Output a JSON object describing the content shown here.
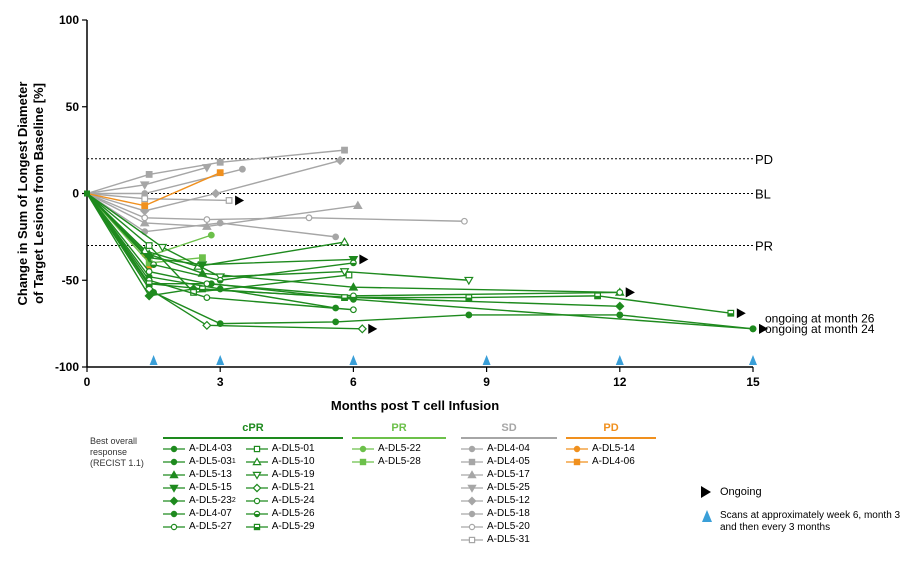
{
  "chart_data": {
    "type": "line",
    "ylabel_line1": "Change in Sum of Longest Diameter",
    "ylabel_line2": "of Target Lesions from Baseline [%]",
    "xlabel": "Months post T cell Infusion",
    "xlim": [
      0,
      15
    ],
    "ylim": [
      -100,
      100
    ],
    "xticks": [
      0,
      3,
      6,
      9,
      12,
      15
    ],
    "yticks": [
      100,
      50,
      0,
      -50,
      -100
    ],
    "reference_lines": [
      {
        "label": "PD",
        "y": 20
      },
      {
        "label": "BL",
        "y": 0
      },
      {
        "label": "PR",
        "y": -30
      }
    ],
    "scan_markers_x": [
      1.5,
      3,
      6,
      9,
      12,
      15
    ],
    "annotations": [
      {
        "text": "ongoing at month 26",
        "x": 15,
        "y": -72
      },
      {
        "text": "ongoing at month 24",
        "x": 15,
        "y": -78
      }
    ],
    "series": [
      {
        "name": "A-DL4-03",
        "group": "cPR",
        "marker": "circle",
        "x": [
          0,
          1.4,
          3,
          5.6
        ],
        "y": [
          0,
          -48,
          -55,
          -66
        ],
        "arrow": false
      },
      {
        "name": "A-DL5-03",
        "sup": "1",
        "group": "cPR",
        "marker": "circle",
        "x": [
          0,
          1.4,
          2.8,
          6,
          15
        ],
        "y": [
          0,
          -52,
          -52,
          -61,
          -78
        ],
        "arrow": true
      },
      {
        "name": "A-DL5-13",
        "group": "cPR",
        "marker": "triangle-up",
        "x": [
          0,
          1.4,
          2.6,
          6,
          12
        ],
        "y": [
          0,
          -35,
          -46,
          -54,
          -57
        ],
        "arrow": true
      },
      {
        "name": "A-DL5-15",
        "group": "cPR",
        "marker": "triangle-down",
        "x": [
          0,
          1.4,
          2.6,
          6
        ],
        "y": [
          0,
          -37,
          -41,
          -38
        ],
        "arrow": true
      },
      {
        "name": "A-DL5-23",
        "sup": "2",
        "group": "cPR",
        "marker": "diamond",
        "x": [
          0,
          1.4,
          2.4,
          6,
          12
        ],
        "y": [
          0,
          -59,
          -55,
          -60,
          -65
        ],
        "arrow": false
      },
      {
        "name": "A-DL4-07",
        "group": "cPR",
        "marker": "circle",
        "x": [
          0,
          1.5,
          3,
          5.6,
          8.6,
          12,
          15
        ],
        "y": [
          0,
          -57,
          -75,
          -74,
          -70,
          -70,
          -78
        ],
        "arrow": true
      },
      {
        "name": "A-DL5-27",
        "group": "cPR",
        "marker": "circle-open",
        "x": [
          0,
          1.4,
          2.7,
          6,
          12
        ],
        "y": [
          0,
          -45,
          -52,
          -59,
          -57
        ],
        "arrow": true
      },
      {
        "name": "A-DL5-01",
        "group": "cPR",
        "marker": "square-open",
        "x": [
          0,
          1.4,
          2.4,
          5.9
        ],
        "y": [
          0,
          -30,
          -57,
          -47
        ],
        "arrow": false
      },
      {
        "name": "A-DL5-10",
        "group": "cPR",
        "marker": "triangle-open",
        "x": [
          0,
          1.3,
          2.5,
          5.8
        ],
        "y": [
          0,
          -33,
          -42,
          -28
        ],
        "arrow": false
      },
      {
        "name": "A-DL5-19",
        "group": "cPR",
        "marker": "triangle-down-open",
        "x": [
          0,
          1.7,
          3,
          5.8,
          8.6
        ],
        "y": [
          0,
          -31,
          -48,
          -45,
          -50
        ],
        "arrow": false
      },
      {
        "name": "A-DL5-21",
        "group": "cPR",
        "marker": "diamond-open",
        "x": [
          0,
          1.4,
          2.7,
          6.2
        ],
        "y": [
          0,
          -55,
          -76,
          -78
        ],
        "arrow": true
      },
      {
        "name": "A-DL5-24",
        "group": "cPR",
        "marker": "circle-open",
        "x": [
          0,
          1.4,
          2.7,
          6
        ],
        "y": [
          0,
          -50,
          -60,
          -67
        ],
        "arrow": false
      },
      {
        "name": "A-DL5-26",
        "group": "cPR",
        "marker": "circle-half",
        "x": [
          0,
          1.5,
          3,
          6
        ],
        "y": [
          0,
          -41,
          -50,
          -40
        ],
        "arrow": false
      },
      {
        "name": "A-DL5-29",
        "group": "cPR",
        "marker": "square-half",
        "x": [
          0,
          1.4,
          2.6,
          5.8,
          8.6,
          11.5,
          14.5
        ],
        "y": [
          0,
          -52,
          -55,
          -60,
          -60,
          -59,
          -69
        ],
        "arrow": true
      },
      {
        "name": "A-DL5-22",
        "group": "PR",
        "marker": "circle",
        "x": [
          0,
          1.4,
          2.8
        ],
        "y": [
          0,
          -36,
          -24
        ],
        "arrow": false
      },
      {
        "name": "A-DL5-28",
        "group": "PR",
        "marker": "square",
        "x": [
          0,
          1.4,
          2.6
        ],
        "y": [
          0,
          -40,
          -37
        ],
        "arrow": false
      },
      {
        "name": "A-DL4-04",
        "group": "SD",
        "marker": "circle",
        "x": [
          0,
          1.3,
          3,
          5.6
        ],
        "y": [
          0,
          -22,
          -17,
          -25
        ],
        "arrow": false
      },
      {
        "name": "A-DL4-05",
        "group": "SD",
        "marker": "square",
        "x": [
          0,
          1.4,
          3,
          5.8
        ],
        "y": [
          0,
          11,
          18,
          25
        ],
        "arrow": false
      },
      {
        "name": "A-DL5-17",
        "group": "SD",
        "marker": "triangle-up",
        "x": [
          0,
          1.3,
          2.7,
          6.1
        ],
        "y": [
          0,
          -17,
          -19,
          -7
        ],
        "arrow": false
      },
      {
        "name": "A-DL5-25",
        "group": "SD",
        "marker": "triangle-down",
        "x": [
          0,
          1.3,
          2.7
        ],
        "y": [
          0,
          5,
          15
        ],
        "arrow": false
      },
      {
        "name": "A-DL5-12",
        "group": "SD",
        "marker": "diamond",
        "x": [
          0,
          1.3,
          2.9,
          5.7
        ],
        "y": [
          0,
          -10,
          0,
          19
        ],
        "arrow": false
      },
      {
        "name": "A-DL5-18",
        "group": "SD",
        "marker": "circle",
        "x": [
          0,
          1.3,
          3.5
        ],
        "y": [
          0,
          0,
          14
        ],
        "arrow": false
      },
      {
        "name": "A-DL5-20",
        "group": "SD",
        "marker": "circle-open",
        "x": [
          0,
          1.3,
          2.7,
          5,
          8.5
        ],
        "y": [
          0,
          -14,
          -15,
          -14,
          -16
        ],
        "arrow": false
      },
      {
        "name": "A-DL5-31",
        "group": "SD",
        "marker": "square-open",
        "x": [
          0,
          1.3,
          3.2
        ],
        "y": [
          0,
          -3,
          -4
        ],
        "arrow": true
      },
      {
        "name": "A-DL5-14",
        "group": "PD",
        "marker": "circle",
        "x": [
          0,
          1.3,
          1.4
        ],
        "y": [
          0,
          -35,
          -42
        ],
        "arrow": false
      },
      {
        "name": "A-DL4-06",
        "group": "PD",
        "marker": "square",
        "x": [
          0,
          1.3,
          3
        ],
        "y": [
          0,
          -7,
          12
        ],
        "arrow": false
      }
    ]
  },
  "colors": {
    "cPR": "#1e8a1e",
    "PR": "#6cc04a",
    "SD": "#a6a6a6",
    "PD": "#f0901e",
    "scan": "#3a9fd8",
    "arrow": "#000000"
  },
  "legend": {
    "bor_label": "Best overall response (RECIST 1.1)",
    "groups": {
      "cPR": "cPR",
      "PR": "PR",
      "SD": "SD",
      "PD": "PD"
    },
    "ongoing": "Ongoing",
    "scans": "Scans at approximately week 6, month 3 and then every 3 months"
  }
}
